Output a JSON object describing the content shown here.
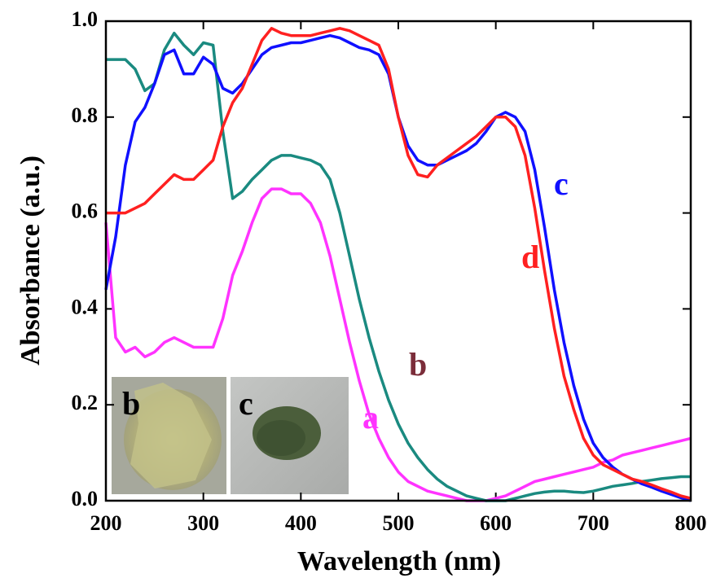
{
  "chart_data": {
    "type": "line",
    "x_label": "Wavelength (nm)",
    "y_label": "Absorbance (a.u.)",
    "xlim": [
      200,
      800
    ],
    "ylim": [
      0,
      1
    ],
    "xticks": [
      200,
      300,
      400,
      500,
      600,
      700,
      800
    ],
    "yticks": [
      {
        "value": 0,
        "label": "0.0"
      },
      0.2,
      0.4,
      0.6,
      0.8,
      {
        "value": 1,
        "label": "1.0"
      }
    ],
    "x": [
      200,
      210,
      220,
      230,
      240,
      250,
      260,
      270,
      280,
      290,
      300,
      310,
      320,
      330,
      340,
      350,
      360,
      370,
      380,
      390,
      400,
      410,
      420,
      430,
      440,
      450,
      460,
      470,
      480,
      490,
      500,
      510,
      520,
      530,
      540,
      550,
      560,
      570,
      580,
      590,
      600,
      610,
      620,
      630,
      640,
      650,
      660,
      670,
      680,
      690,
      700,
      710,
      720,
      730,
      740,
      750,
      760,
      770,
      780,
      790,
      800
    ],
    "series": [
      {
        "name": "a",
        "color": "#ff33ff",
        "label_color": "#ff33ff",
        "values": [
          0.58,
          0.34,
          0.31,
          0.32,
          0.3,
          0.31,
          0.33,
          0.34,
          0.33,
          0.32,
          0.32,
          0.32,
          0.38,
          0.47,
          0.52,
          0.58,
          0.63,
          0.65,
          0.65,
          0.64,
          0.64,
          0.62,
          0.58,
          0.51,
          0.42,
          0.33,
          0.25,
          0.18,
          0.13,
          0.09,
          0.06,
          0.04,
          0.03,
          0.02,
          0.015,
          0.01,
          0.005,
          0.0,
          0.0,
          0.0,
          0.005,
          0.01,
          0.02,
          0.03,
          0.04,
          0.045,
          0.05,
          0.055,
          0.06,
          0.065,
          0.07,
          0.08,
          0.085,
          0.095,
          0.1,
          0.105,
          0.11,
          0.115,
          0.12,
          0.125,
          0.13
        ]
      },
      {
        "name": "b",
        "color": "#1a8a80",
        "label_color": "#7b2d3a",
        "values": [
          0.92,
          0.92,
          0.92,
          0.9,
          0.855,
          0.87,
          0.94,
          0.975,
          0.95,
          0.93,
          0.955,
          0.95,
          0.77,
          0.63,
          0.645,
          0.67,
          0.69,
          0.71,
          0.72,
          0.72,
          0.715,
          0.71,
          0.7,
          0.67,
          0.6,
          0.51,
          0.42,
          0.34,
          0.27,
          0.21,
          0.16,
          0.12,
          0.09,
          0.065,
          0.045,
          0.03,
          0.02,
          0.01,
          0.005,
          0.0,
          0.0,
          0.0,
          0.005,
          0.01,
          0.015,
          0.018,
          0.02,
          0.02,
          0.018,
          0.017,
          0.02,
          0.025,
          0.03,
          0.033,
          0.036,
          0.04,
          0.043,
          0.046,
          0.048,
          0.05,
          0.05
        ]
      },
      {
        "name": "c",
        "color": "#1010ff",
        "label_color": "#1010ff",
        "values": [
          0.44,
          0.55,
          0.7,
          0.79,
          0.82,
          0.87,
          0.93,
          0.94,
          0.89,
          0.89,
          0.925,
          0.91,
          0.86,
          0.85,
          0.87,
          0.9,
          0.93,
          0.945,
          0.95,
          0.955,
          0.955,
          0.96,
          0.965,
          0.97,
          0.965,
          0.955,
          0.945,
          0.94,
          0.93,
          0.89,
          0.8,
          0.74,
          0.71,
          0.7,
          0.7,
          0.71,
          0.72,
          0.73,
          0.745,
          0.77,
          0.8,
          0.81,
          0.8,
          0.77,
          0.69,
          0.57,
          0.44,
          0.33,
          0.24,
          0.17,
          0.12,
          0.09,
          0.07,
          0.055,
          0.045,
          0.035,
          0.028,
          0.02,
          0.013,
          0.006,
          0.0
        ]
      },
      {
        "name": "d",
        "color": "#ff2020",
        "label_color": "#ff2020",
        "values": [
          0.6,
          0.6,
          0.6,
          0.61,
          0.62,
          0.64,
          0.66,
          0.68,
          0.67,
          0.67,
          0.69,
          0.71,
          0.78,
          0.83,
          0.86,
          0.91,
          0.96,
          0.985,
          0.975,
          0.97,
          0.97,
          0.97,
          0.975,
          0.98,
          0.985,
          0.98,
          0.97,
          0.96,
          0.95,
          0.9,
          0.8,
          0.72,
          0.68,
          0.675,
          0.7,
          0.715,
          0.73,
          0.745,
          0.76,
          0.78,
          0.8,
          0.8,
          0.78,
          0.72,
          0.61,
          0.48,
          0.36,
          0.26,
          0.19,
          0.13,
          0.095,
          0.075,
          0.065,
          0.055,
          0.045,
          0.04,
          0.033,
          0.025,
          0.018,
          0.01,
          0.005
        ]
      }
    ],
    "insets": [
      {
        "label": "b"
      },
      {
        "label": "c"
      }
    ]
  }
}
